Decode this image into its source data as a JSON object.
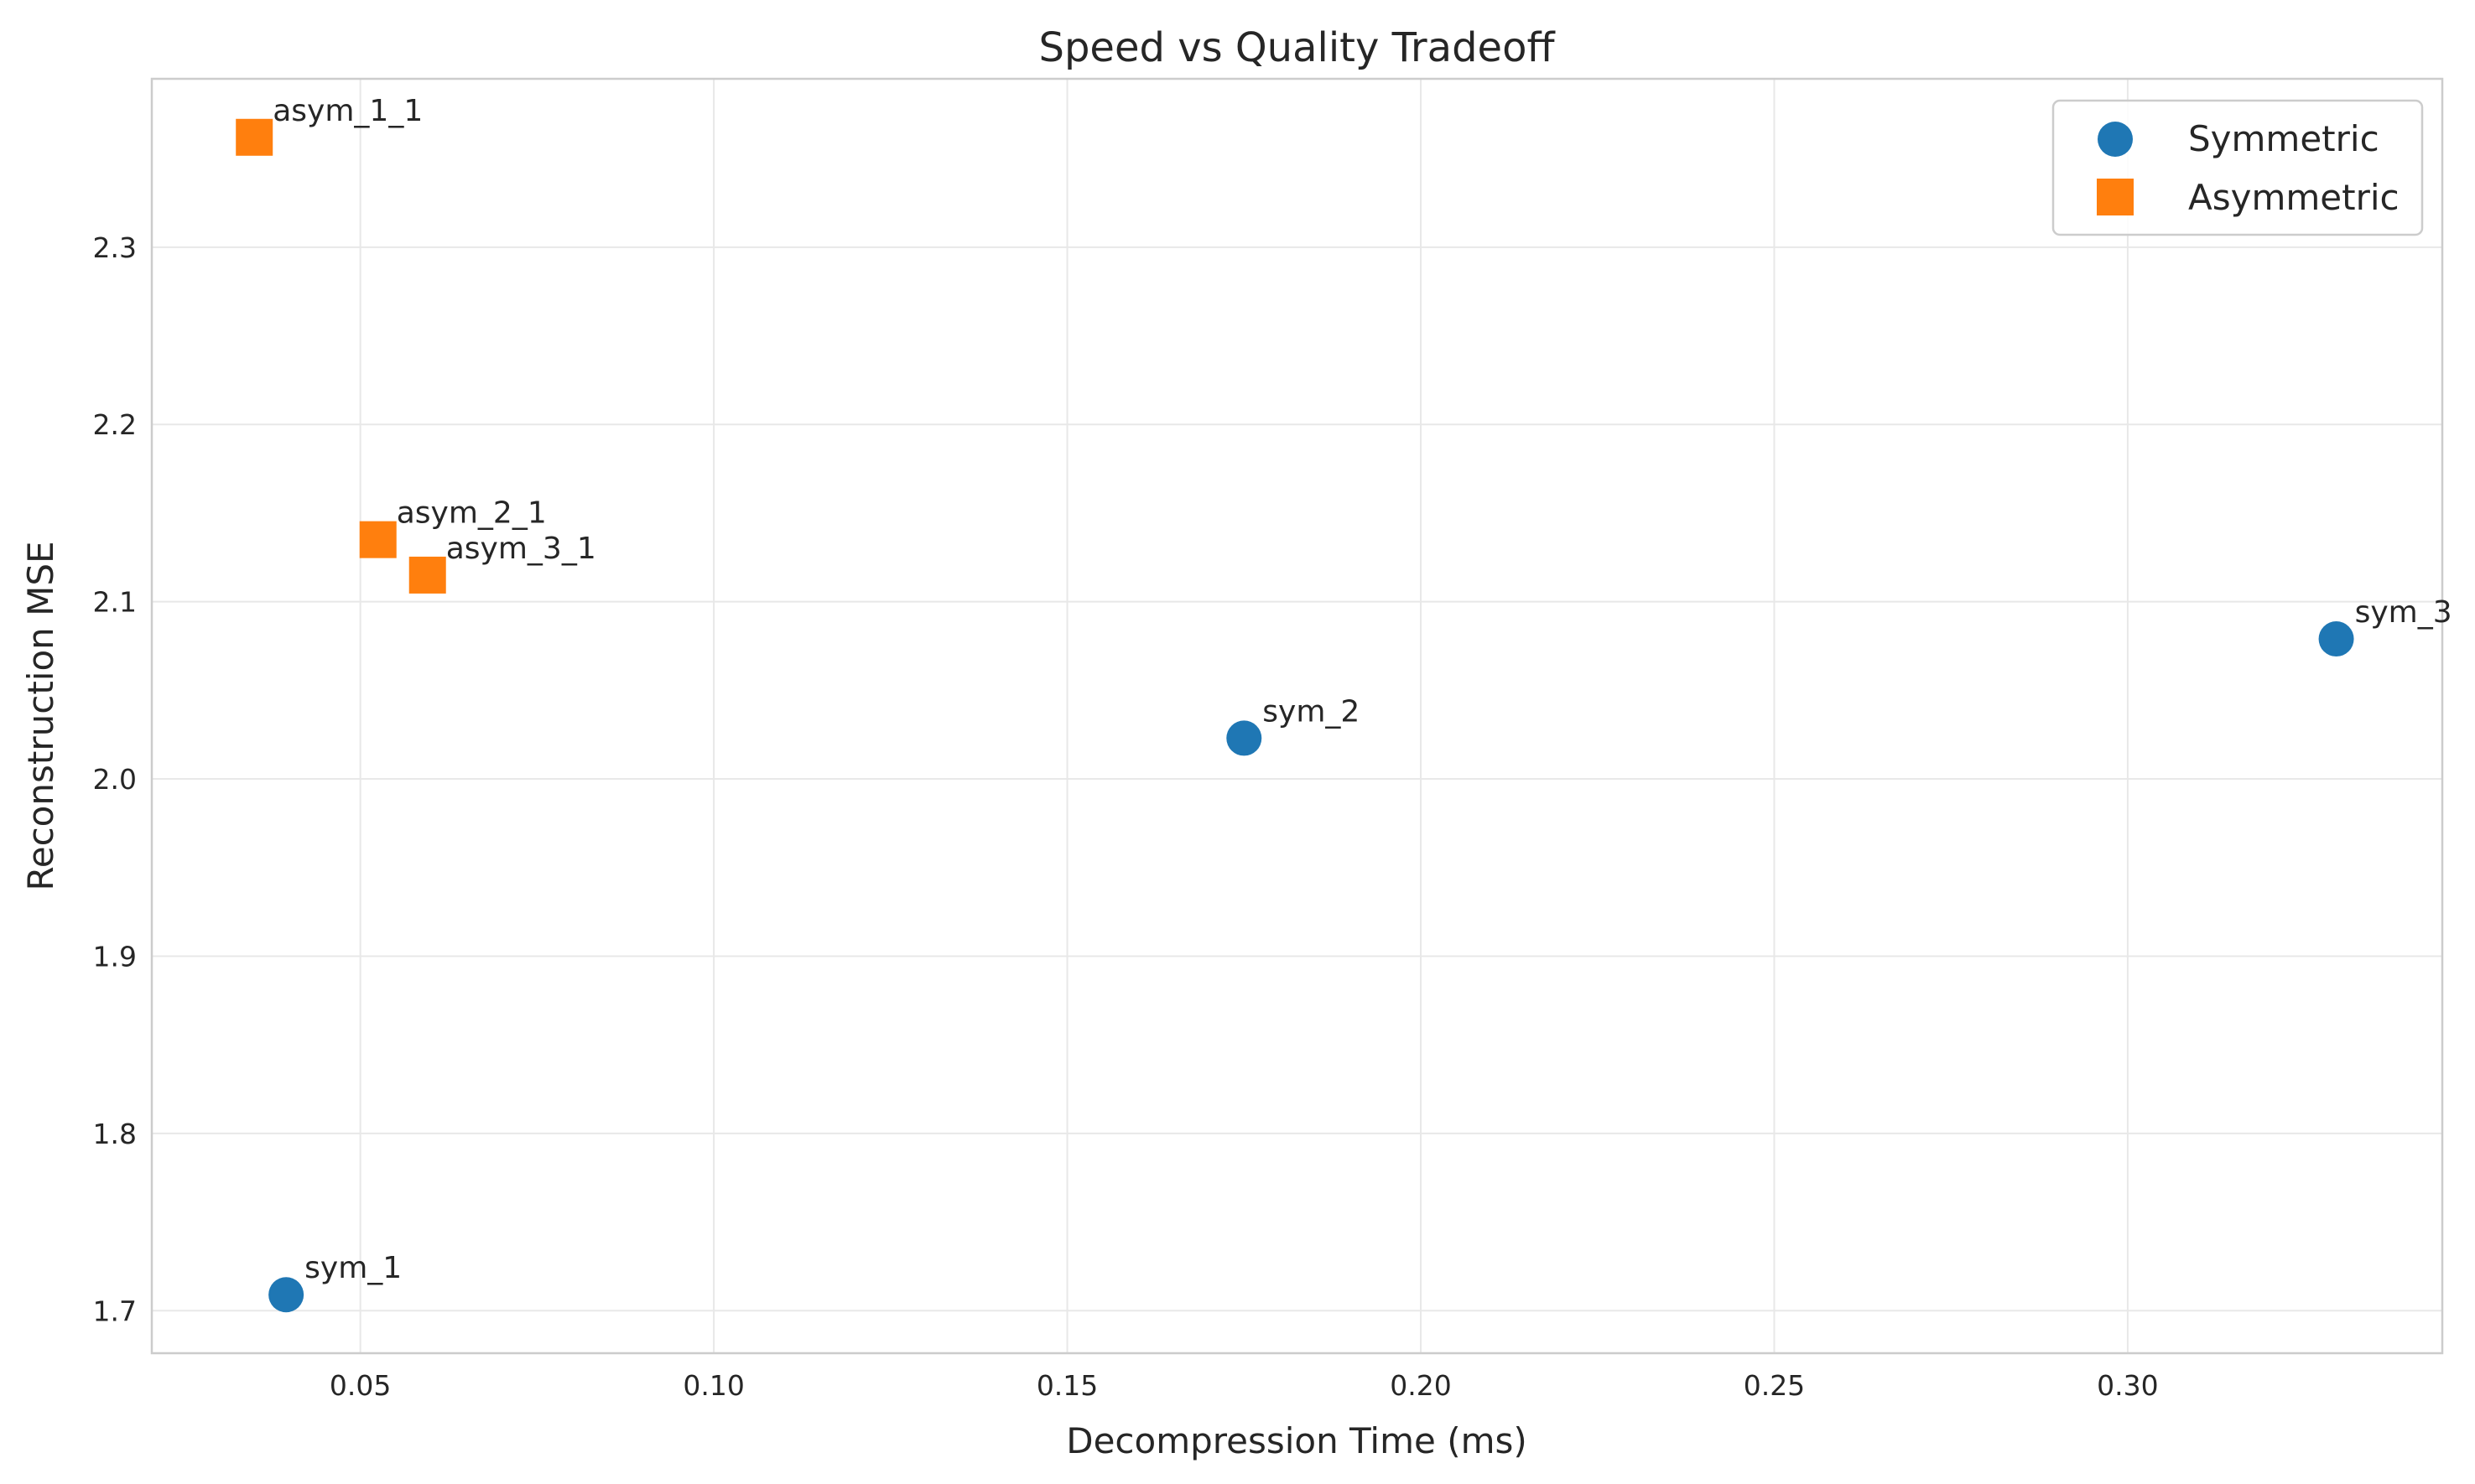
{
  "chart_data": {
    "type": "scatter",
    "title": "Speed vs Quality Tradeoff",
    "xlabel": "Decompression Time (ms)",
    "ylabel": "Reconstruction MSE",
    "xlim": [
      0.0205,
      0.3445
    ],
    "ylim": [
      1.676,
      2.395
    ],
    "xticks": [
      "0.05",
      "0.10",
      "0.15",
      "0.20",
      "0.25",
      "0.30"
    ],
    "yticks": [
      "1.7",
      "1.8",
      "1.9",
      "2.0",
      "2.1",
      "2.2",
      "2.3"
    ],
    "grid": true,
    "legend_position": "top-right",
    "series": [
      {
        "name": "Symmetric",
        "marker": "circle",
        "color": "#1f77b4",
        "points": [
          {
            "label": "sym_1",
            "x": 0.0395,
            "y": 1.709
          },
          {
            "label": "sym_2",
            "x": 0.175,
            "y": 2.023
          },
          {
            "label": "sym_3",
            "x": 0.3295,
            "y": 2.079
          }
        ]
      },
      {
        "name": "Asymmetric",
        "marker": "square",
        "color": "#ff7f0e",
        "points": [
          {
            "label": "asym_1_1",
            "x": 0.035,
            "y": 2.362
          },
          {
            "label": "asym_2_1",
            "x": 0.0525,
            "y": 2.135
          },
          {
            "label": "asym_3_1",
            "x": 0.0595,
            "y": 2.115
          }
        ]
      }
    ]
  }
}
